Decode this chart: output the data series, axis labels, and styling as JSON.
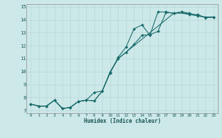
{
  "xlabel": "Humidex (Indice chaleur)",
  "bg_color": "#cce8e8",
  "grid_color": "#b8d8d8",
  "line_color": "#1a6b6b",
  "xlim": [
    -0.5,
    23.5
  ],
  "ylim": [
    6.8,
    15.2
  ],
  "xticks": [
    0,
    1,
    2,
    3,
    4,
    5,
    6,
    7,
    8,
    9,
    10,
    11,
    12,
    13,
    14,
    15,
    16,
    17,
    18,
    19,
    20,
    21,
    22,
    23
  ],
  "yticks": [
    7,
    8,
    9,
    10,
    11,
    12,
    13,
    14,
    15
  ],
  "line1_x": [
    0,
    1,
    2,
    3,
    4,
    5,
    6,
    7,
    8,
    9,
    10,
    11,
    12,
    13,
    14,
    15,
    16,
    17,
    18,
    19,
    20,
    21,
    22,
    23
  ],
  "line1_y": [
    7.5,
    7.35,
    7.35,
    7.8,
    7.15,
    7.25,
    7.7,
    7.8,
    8.4,
    8.5,
    9.9,
    11.1,
    11.9,
    13.3,
    13.6,
    12.8,
    14.6,
    14.6,
    14.5,
    14.6,
    14.5,
    14.3,
    14.2,
    14.2
  ],
  "line2_x": [
    0,
    1,
    2,
    3,
    4,
    5,
    6,
    7,
    8,
    9,
    10,
    11,
    12,
    13,
    14,
    15,
    16,
    17,
    18,
    19,
    20,
    21,
    22,
    23
  ],
  "line2_y": [
    7.5,
    7.35,
    7.35,
    7.8,
    7.15,
    7.25,
    7.7,
    7.8,
    7.75,
    8.5,
    9.95,
    11.0,
    11.5,
    12.1,
    12.8,
    12.85,
    13.1,
    14.55,
    14.5,
    14.6,
    14.4,
    14.4,
    14.15,
    14.2
  ],
  "line3_x": [
    0,
    1,
    2,
    3,
    4,
    5,
    6,
    7,
    8,
    9,
    10,
    11,
    12,
    13,
    14,
    15,
    16,
    17,
    18,
    19,
    20,
    21,
    22,
    23
  ],
  "line3_y": [
    7.5,
    7.35,
    7.35,
    7.8,
    7.15,
    7.25,
    7.7,
    7.8,
    7.75,
    8.5,
    10.0,
    11.0,
    11.5,
    12.0,
    12.5,
    13.0,
    13.5,
    14.0,
    14.5,
    14.5,
    14.4,
    14.3,
    14.2,
    14.2
  ]
}
